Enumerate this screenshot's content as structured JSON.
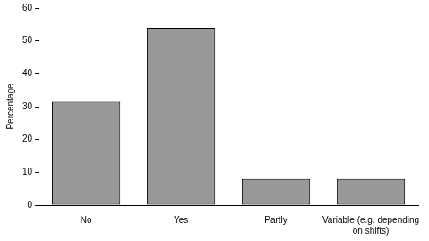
{
  "chart_data": {
    "type": "bar",
    "y_label": "Percentage",
    "categories": [
      "No",
      "Yes",
      "Partly",
      "Variable (e.g. depending on shifts)"
    ],
    "values": [
      31.5,
      54,
      8,
      8
    ],
    "color": "#999999",
    "ylim": [
      0,
      60
    ],
    "yticks": [
      0,
      10,
      20,
      30,
      40,
      50,
      60
    ],
    "grid": false
  }
}
